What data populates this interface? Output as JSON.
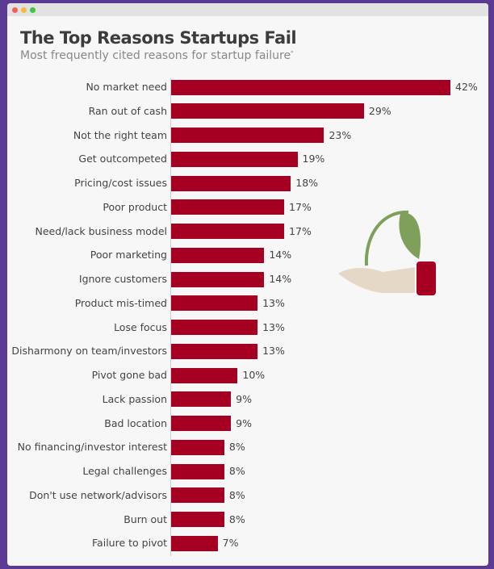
{
  "colors": {
    "bar": "#a50021",
    "background": "#5a3a92",
    "leaf": "#7fa05a",
    "hand": "#e6d8c6"
  },
  "window": {
    "dots": [
      "#f25f58",
      "#f7b93e",
      "#3ec446"
    ]
  },
  "chart_data": {
    "type": "bar",
    "orientation": "horizontal",
    "title": "The Top Reasons Startups Fail",
    "subtitle": "Most frequently cited reasons for startup failure",
    "subtitle_mark": "*",
    "xlabel": "",
    "ylabel": "",
    "xlim": [
      0,
      42
    ],
    "grid": false,
    "categories": [
      "No market need",
      "Ran out of cash",
      "Not the right team",
      "Get outcompeted",
      "Pricing/cost issues",
      "Poor product",
      "Need/lack business model",
      "Poor marketing",
      "Ignore customers",
      "Product mis-timed",
      "Lose focus",
      "Disharmony on team/investors",
      "Pivot gone bad",
      "Lack passion",
      "Bad location",
      "No financing/investor interest",
      "Legal challenges",
      "Don't use network/advisors",
      "Burn out",
      "Failure to pivot"
    ],
    "values": [
      42,
      29,
      23,
      19,
      18,
      17,
      17,
      14,
      14,
      13,
      13,
      13,
      10,
      9,
      9,
      8,
      8,
      8,
      8,
      7
    ],
    "labels": [
      "42%",
      "29%",
      "23%",
      "19%",
      "18%",
      "17%",
      "17%",
      "14%",
      "14%",
      "13%",
      "13%",
      "13%",
      "10%",
      "9%",
      "9%",
      "8%",
      "8%",
      "8%",
      "8%",
      "7%"
    ]
  }
}
